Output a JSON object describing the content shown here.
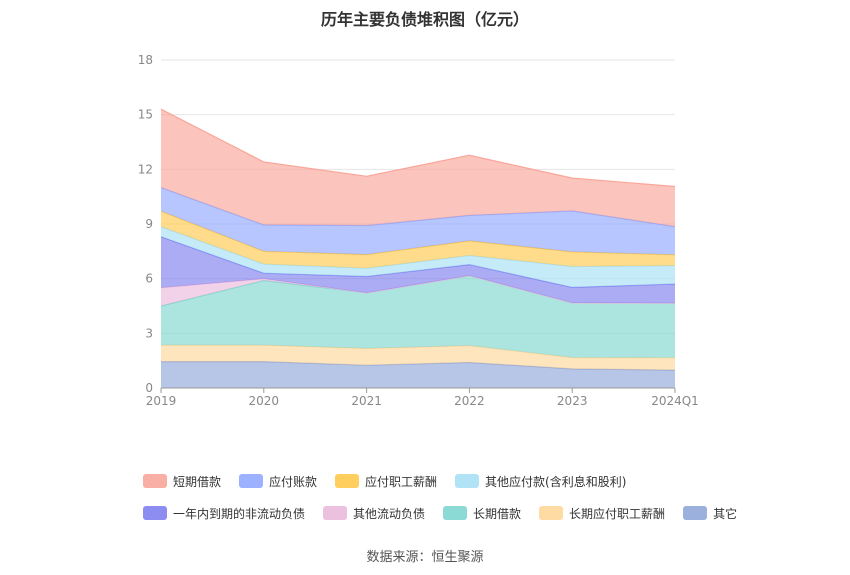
{
  "title": "历年主要负债堆积图（亿元）",
  "source": "数据来源：恒生聚源",
  "chart_data": {
    "type": "area",
    "stacked": true,
    "x": [
      "2019",
      "2020",
      "2021",
      "2022",
      "2023",
      "2024Q1"
    ],
    "ylim": [
      0,
      18
    ],
    "yticks": [
      0,
      3,
      6,
      9,
      12,
      15,
      18
    ],
    "grid": true,
    "legend_position": "bottom",
    "series": [
      {
        "name": "其它",
        "color": "#91A7D9",
        "values": [
          1.45,
          1.45,
          1.25,
          1.4,
          1.05,
          0.98
        ]
      },
      {
        "name": "长期应付职工薪酬",
        "color": "#FFD79A",
        "values": [
          0.9,
          0.9,
          0.92,
          0.92,
          0.62,
          0.68
        ]
      },
      {
        "name": "长期借款",
        "color": "#7FD6D0",
        "values": [
          2.15,
          3.55,
          3.05,
          3.85,
          3.0,
          3.0
        ]
      },
      {
        "name": "其他流动负债",
        "color": "#E9BADB",
        "values": [
          1.0,
          0.1,
          0.0,
          0.0,
          0.0,
          0.0
        ]
      },
      {
        "name": "一年内到期的非流动负债",
        "color": "#7F7FF0",
        "values": [
          2.8,
          0.3,
          0.9,
          0.6,
          0.85,
          1.05
        ]
      },
      {
        "name": "其他应付款(含利息和股利)",
        "color": "#A8E0F5",
        "values": [
          0.55,
          0.5,
          0.45,
          0.5,
          1.15,
          1.0
        ]
      },
      {
        "name": "应付职工薪酬",
        "color": "#FFC94D",
        "values": [
          0.85,
          0.7,
          0.75,
          0.8,
          0.8,
          0.6
        ]
      },
      {
        "name": "应付账款",
        "color": "#91A8FF",
        "values": [
          1.3,
          1.45,
          1.6,
          1.4,
          2.25,
          1.55
        ]
      },
      {
        "name": "短期借款",
        "color": "#F9A69A",
        "values": [
          4.3,
          3.45,
          2.7,
          3.3,
          1.8,
          2.2
        ]
      }
    ],
    "legend_order": [
      [
        "短期借款",
        "应付账款",
        "应付职工薪酬",
        "其他应付款(含利息和股利)"
      ],
      [
        "一年内到期的非流动负债",
        "其他流动负债",
        "长期借款",
        "长期应付职工薪酬",
        "其它"
      ]
    ]
  }
}
